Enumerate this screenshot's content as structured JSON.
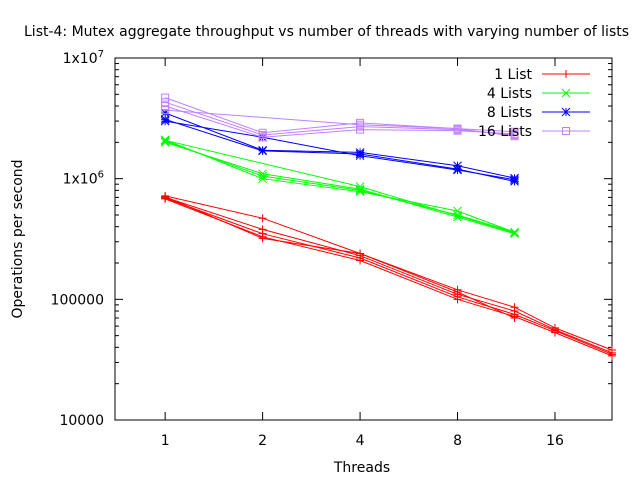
{
  "chart_data": {
    "type": "line",
    "title": "List-4: Mutex aggregate throughput vs number of threads with varying number of lists",
    "xlabel": "Threads",
    "ylabel": "Operations per second",
    "x_scale": "log2",
    "y_scale": "log10",
    "xlim": [
      0.7,
      24
    ],
    "ylim": [
      10000,
      10000000
    ],
    "x_ticks": [
      {
        "value": 1,
        "label": "1"
      },
      {
        "value": 2,
        "label": "2"
      },
      {
        "value": 4,
        "label": "4"
      },
      {
        "value": 8,
        "label": "8"
      },
      {
        "value": 16,
        "label": "16"
      }
    ],
    "y_ticks": [
      {
        "value": 10000,
        "label": "10000",
        "sup": ""
      },
      {
        "value": 100000,
        "label": "100000",
        "sup": ""
      },
      {
        "value": 1000000,
        "label": "1x10",
        "sup": "6"
      },
      {
        "value": 10000000,
        "label": "1x10",
        "sup": "7"
      }
    ],
    "grid": false,
    "legend_position": "top-right",
    "series": [
      {
        "name": "1 List",
        "color": "#ff0000",
        "marker": "plus",
        "runs": [
          {
            "x": [
              1,
              2,
              4,
              8,
              12,
              16,
              24
            ],
            "y": [
              720000,
              470000,
              240000,
              120000,
              86000,
              58000,
              38000
            ]
          },
          {
            "x": [
              1,
              2,
              4,
              8,
              12,
              16,
              24
            ],
            "y": [
              700000,
              380000,
              230000,
              110000,
              80000,
              56000,
              36000
            ]
          },
          {
            "x": [
              1,
              2,
              4,
              8,
              12,
              16,
              24
            ],
            "y": [
              690000,
              350000,
              220000,
              105000,
              75000,
              55000,
              35000
            ]
          },
          {
            "x": [
              1,
              2,
              4,
              8,
              12,
              16,
              24
            ],
            "y": [
              680000,
              330000,
              210000,
              100000,
              72000,
              53000,
              34000
            ]
          },
          {
            "x": [
              1,
              2,
              4,
              8,
              12
            ],
            "y": [
              710000,
              320000,
              240000,
              115000,
              70000
            ]
          }
        ]
      },
      {
        "name": "4 Lists",
        "color": "#00ff00",
        "marker": "x",
        "runs": [
          {
            "x": [
              1,
              2,
              4,
              8,
              12
            ],
            "y": [
              2100000,
              1000000,
              780000,
              540000,
              360000
            ]
          },
          {
            "x": [
              1,
              2,
              4,
              8,
              12
            ],
            "y": [
              2050000,
              1050000,
              800000,
              500000,
              360000
            ]
          },
          {
            "x": [
              1,
              2,
              4,
              8,
              12
            ],
            "y": [
              2000000,
              1100000,
              820000,
              480000,
              350000
            ]
          },
          {
            "x": [
              1,
              4,
              12
            ],
            "y": [
              2080000,
              860000,
              355000
            ]
          }
        ]
      },
      {
        "name": "8 Lists",
        "color": "#0000ff",
        "marker": "star",
        "runs": [
          {
            "x": [
              1,
              2,
              4,
              8,
              12
            ],
            "y": [
              3500000,
              1720000,
              1650000,
              1280000,
              1010000
            ]
          },
          {
            "x": [
              1,
              2,
              4,
              8,
              12
            ],
            "y": [
              3100000,
              1700000,
              1600000,
              1200000,
              950000
            ]
          },
          {
            "x": [
              1,
              2,
              4,
              8,
              12
            ],
            "y": [
              3000000,
              2200000,
              1550000,
              1180000,
              980000
            ]
          }
        ]
      },
      {
        "name": "16 Lists",
        "color": "#c080ff",
        "marker": "square",
        "runs": [
          {
            "x": [
              1,
              2,
              4,
              8,
              12
            ],
            "y": [
              4700000,
              2400000,
              2900000,
              2600000,
              2250000
            ]
          },
          {
            "x": [
              1,
              2,
              4,
              8,
              12
            ],
            "y": [
              4300000,
              2300000,
              2700000,
              2550000,
              2300000
            ]
          },
          {
            "x": [
              1,
              2,
              4,
              8,
              12
            ],
            "y": [
              4000000,
              2200000,
              2550000,
              2500000,
              2350000
            ]
          },
          {
            "x": [
              1,
              4,
              8,
              12
            ],
            "y": [
              3700000,
              2800000,
              2600000,
              2450000
            ]
          }
        ]
      }
    ]
  }
}
